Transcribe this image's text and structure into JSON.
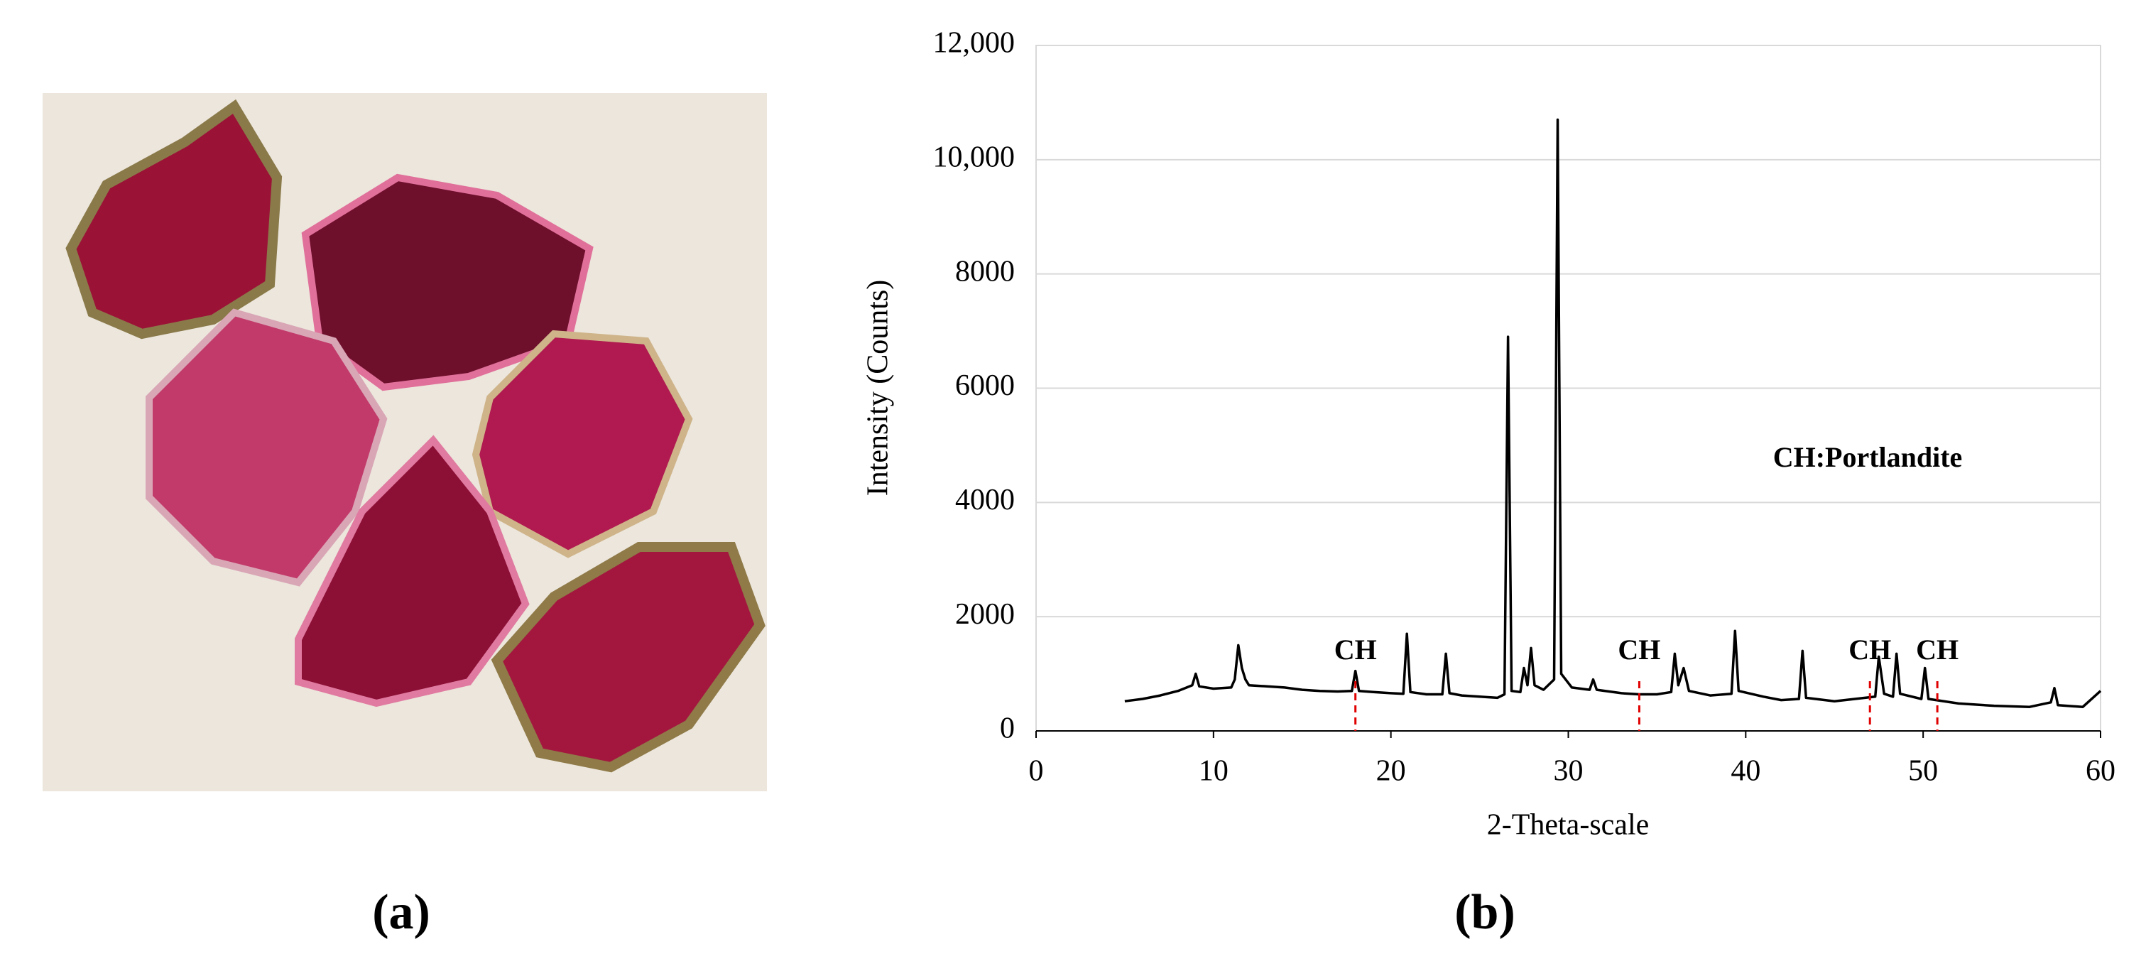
{
  "figure": {
    "labels": [
      "(a)",
      "(b)"
    ]
  },
  "chart_data": {
    "type": "line",
    "x_label": "2-Theta-scale",
    "y_label": "Intensity (Counts)",
    "x": [
      5,
      6,
      7,
      8,
      8.8,
      9,
      9.2,
      10,
      11,
      11.2,
      11.4,
      11.6,
      11.8,
      12,
      13,
      14,
      15,
      16,
      17,
      17.8,
      18,
      18.2,
      19,
      20,
      20.7,
      20.9,
      21.1,
      22,
      22.9,
      23.1,
      23.3,
      24,
      25,
      26,
      26.4,
      26.6,
      26.8,
      27.3,
      27.5,
      27.7,
      27.9,
      28.1,
      28.6,
      29.2,
      29.4,
      29.6,
      30.2,
      31.2,
      31.4,
      31.6,
      33,
      34,
      35,
      35.8,
      36,
      36.2,
      36.5,
      36.8,
      38,
      39.2,
      39.4,
      39.6,
      41,
      42,
      43,
      43.2,
      43.4,
      45,
      47.3,
      47.5,
      47.8,
      48.3,
      48.5,
      48.7,
      49.9,
      50.1,
      50.3,
      52,
      54,
      56,
      57.2,
      57.4,
      57.6,
      59,
      60
    ],
    "values": [
      520,
      560,
      620,
      700,
      800,
      1000,
      780,
      740,
      760,
      900,
      1500,
      1100,
      900,
      800,
      780,
      760,
      720,
      700,
      690,
      700,
      1050,
      700,
      680,
      660,
      650,
      1700,
      680,
      640,
      640,
      1350,
      660,
      620,
      600,
      580,
      640,
      6900,
      700,
      680,
      1100,
      800,
      1450,
      800,
      720,
      900,
      10700,
      1000,
      760,
      720,
      900,
      720,
      660,
      640,
      640,
      680,
      1350,
      800,
      1100,
      700,
      620,
      650,
      1750,
      700,
      600,
      540,
      560,
      1400,
      580,
      520,
      600,
      1300,
      650,
      600,
      1350,
      650,
      560,
      1100,
      560,
      480,
      440,
      420,
      500,
      750,
      450,
      420,
      700
    ],
    "color": "#000000",
    "xlim": [
      0,
      60
    ],
    "xticks": [
      0,
      10,
      20,
      30,
      40,
      50,
      60
    ],
    "ylim": [
      0,
      12000
    ],
    "yticks": [
      0,
      2000,
      4000,
      6000,
      8000,
      {
        "value": 10000,
        "label": "10,000"
      },
      {
        "value": 12000,
        "label": "12,000"
      }
    ],
    "grid": true,
    "annotation_color": "#e00000",
    "annotations": [
      {
        "text": "CH",
        "x": 18
      },
      {
        "text": "CH",
        "x": 34
      },
      {
        "text": "CH",
        "x": 47
      },
      {
        "text": "CH",
        "x": 50.8
      }
    ],
    "legend_note": "CH:Portlandite"
  }
}
